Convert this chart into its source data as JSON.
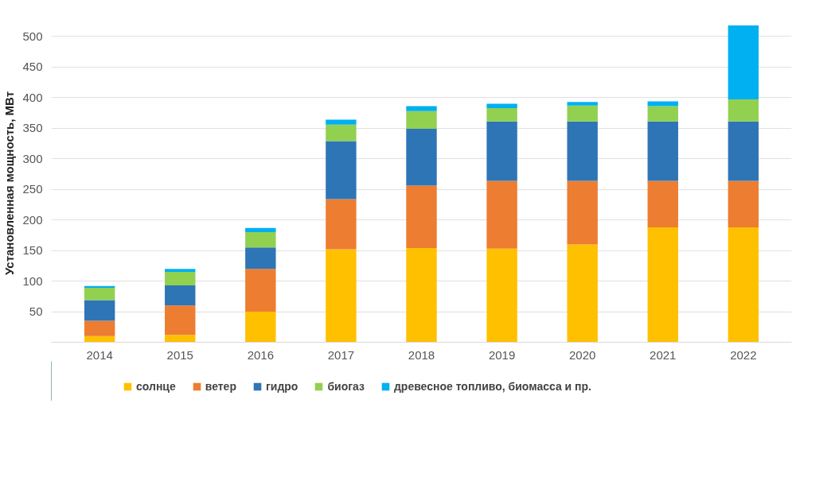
{
  "chart_data": {
    "type": "bar",
    "stacked": true,
    "ylabel": "Установленная мощность, МВт",
    "categories": [
      "2014",
      "2015",
      "2016",
      "2017",
      "2018",
      "2019",
      "2020",
      "2021",
      "2022"
    ],
    "series": [
      {
        "name": "солнце",
        "color": "#ffc000",
        "values": [
          10,
          12,
          50,
          152,
          154,
          153,
          160,
          188,
          188
        ]
      },
      {
        "name": "ветер",
        "color": "#ed7d31",
        "values": [
          25,
          48,
          70,
          82,
          102,
          111,
          104,
          76,
          76
        ]
      },
      {
        "name": "гидро",
        "color": "#2e75b6",
        "values": [
          34,
          33,
          35,
          95,
          93,
          97,
          97,
          97,
          97
        ]
      },
      {
        "name": "биогаз",
        "color": "#92d050",
        "values": [
          20,
          22,
          25,
          27,
          29,
          22,
          26,
          25,
          36
        ]
      },
      {
        "name": "древесное топливо, биомасса и пр.",
        "color": "#00b0f0",
        "values": [
          3,
          5,
          7,
          8,
          8,
          7,
          6,
          8,
          121
        ]
      }
    ],
    "ylim": [
      0,
      520
    ],
    "yticks": [
      {
        "value": 0,
        "label": null
      },
      50,
      100,
      150,
      200,
      250,
      300,
      350,
      400,
      450,
      500
    ],
    "grid": "y",
    "legend": "bottom"
  }
}
